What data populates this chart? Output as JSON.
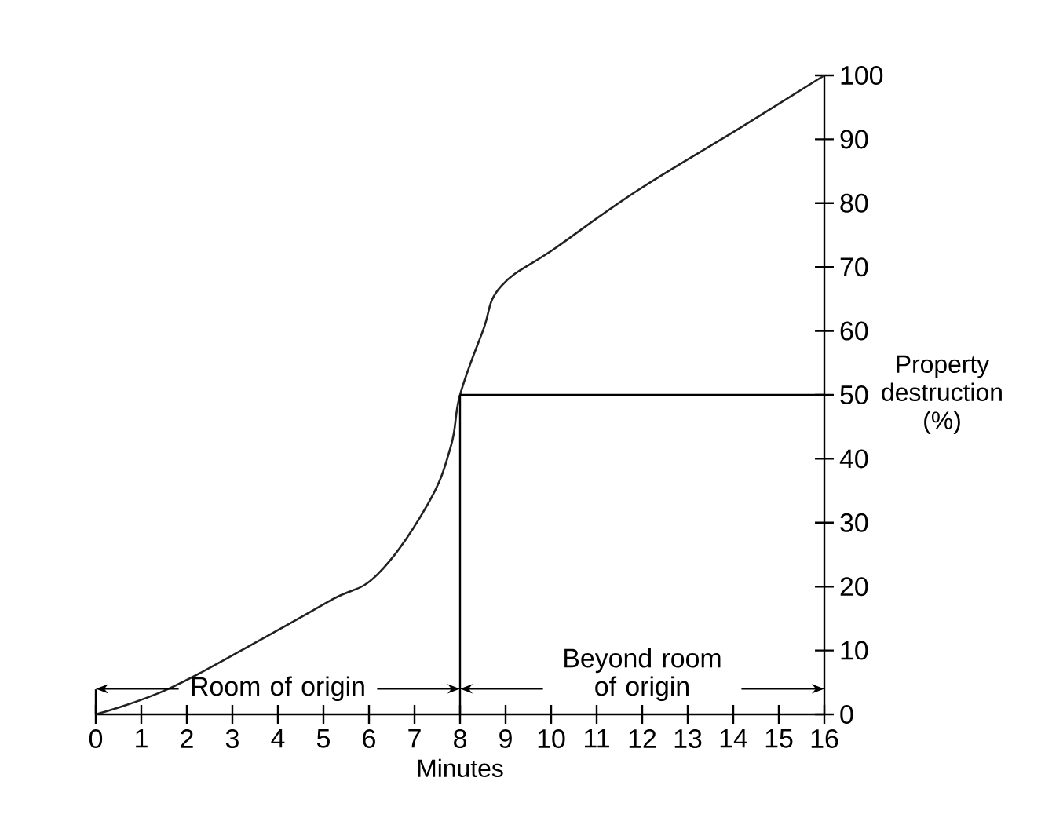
{
  "chart_data": {
    "type": "line",
    "xlabel": "Minutes",
    "ylabel": "Property destruction (%)",
    "series": [
      {
        "color": "#222222",
        "x": [
          0,
          1.6,
          3.7,
          5.2,
          6.2,
          7.3,
          7.8,
          8.0,
          8.5,
          8.9,
          10.1,
          11.9,
          14.2,
          16
        ],
        "values": [
          0,
          4,
          12,
          18,
          22,
          33,
          42,
          50,
          60,
          67,
          73,
          82,
          92,
          100
        ]
      }
    ],
    "xlim": [
      0,
      16
    ],
    "xticks": [
      0,
      1,
      2,
      3,
      4,
      5,
      6,
      7,
      8,
      9,
      10,
      11,
      12,
      13,
      14,
      15,
      16
    ],
    "ylim": [
      0,
      100
    ],
    "yticks": [
      0,
      10,
      20,
      30,
      40,
      50,
      60,
      70,
      80,
      90,
      100
    ],
    "ref_lines": [
      {
        "axis": "x",
        "value": 8
      },
      {
        "axis": "y",
        "value": 50
      }
    ],
    "annotations": [
      {
        "text": "Room of origin",
        "x": 8,
        "y": 4
      },
      {
        "text": "Beyond room of origin",
        "x": 8,
        "y": 4
      }
    ],
    "marker": "none",
    "line_style": "solid"
  }
}
